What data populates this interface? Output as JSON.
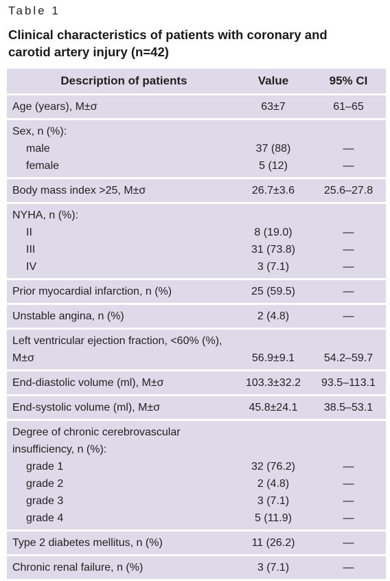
{
  "label": "Table 1",
  "title": "Clinical characteristics of patients with coronary and carotid artery injury (n=42)",
  "table": {
    "header": [
      "Description of patients",
      "Value",
      "95% CI"
    ],
    "rows": [
      {
        "label": "Age (years), M±σ",
        "value": "63±7",
        "ci": "61–65"
      },
      {
        "label": "Sex, n (%):",
        "items": [
          {
            "label": "male",
            "value": "37 (88)",
            "ci": "—"
          },
          {
            "label": "female",
            "value": "5 (12)",
            "ci": "—"
          }
        ]
      },
      {
        "label": "Body mass index >25, M±σ",
        "value": "26.7±3.6",
        "ci": "25.6–27.8"
      },
      {
        "label": "NYHA, n (%):",
        "items": [
          {
            "label": "II",
            "value": "8 (19.0)",
            "ci": "—"
          },
          {
            "label": "III",
            "value": "31 (73.8)",
            "ci": "—"
          },
          {
            "label": "IV",
            "value": "3 (7.1)",
            "ci": "—"
          }
        ]
      },
      {
        "label": "Prior myocardial infarction, n (%)",
        "value": "25 (59.5)",
        "ci": "—"
      },
      {
        "label": "Unstable angina, n (%)",
        "value": "2 (4.8)",
        "ci": "—"
      },
      {
        "label": "Left ventricular ejection fraction, <60% (%), M±σ",
        "value": "56.9±9.1",
        "ci": "54.2–59.7"
      },
      {
        "label": "End-diastolic volume (ml), M±σ",
        "value": "103.3±32.2",
        "ci": "93.5–113.1"
      },
      {
        "label": "End-systolic volume (ml), M±σ",
        "value": "45.8±24.1",
        "ci": "38.5–53.1"
      },
      {
        "label": "Degree of chronic cerebrovascular insufficiency, n (%):",
        "items": [
          {
            "label": "grade 1",
            "value": "32 (76.2)",
            "ci": "—"
          },
          {
            "label": "grade 2",
            "value": "2 (4.8)",
            "ci": "—"
          },
          {
            "label": "grade 3",
            "value": "3 (7.1)",
            "ci": "—"
          },
          {
            "label": "grade 4",
            "value": "5 (11.9)",
            "ci": "—"
          }
        ]
      },
      {
        "label": "Type 2 diabetes mellitus, n (%)",
        "value": "11 (26.2)",
        "ci": "—"
      },
      {
        "label": "Chronic renal failure, n (%)",
        "value": "3 (7.1)",
        "ci": "—"
      }
    ]
  }
}
